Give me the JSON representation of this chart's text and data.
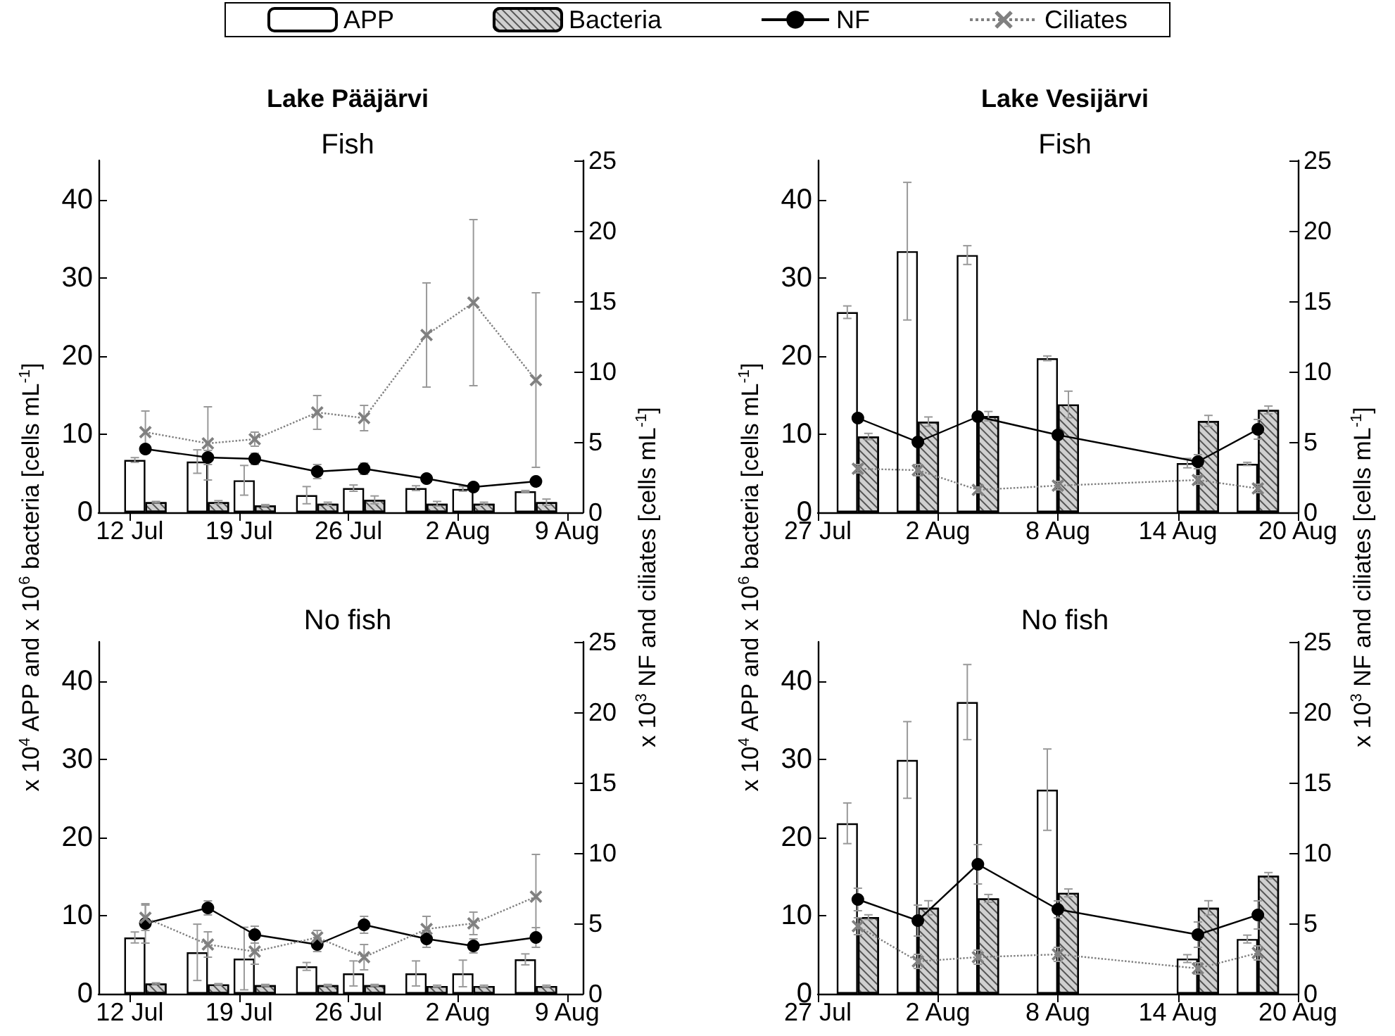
{
  "chart_data": [
    {
      "type": "bar",
      "title": "Lake Pääjärvi",
      "subtitle": "Fish",
      "ylabel": "x 10$^{4}$ APP and x 10$^{6}$ bacteria [cells mL$^{-1}$]",
      "y2label": "x 10$^{3}$ NF and ciliates [cells mL$^{-1}$]",
      "legend": "top",
      "x": [
        "--07-13",
        "--07-17",
        "--07-20",
        "--07-24",
        "--07-27",
        "--07-31",
        "--08-03",
        "--08-07"
      ],
      "xlim": [
        "--07-10",
        "--08-10"
      ],
      "xticks": [
        {
          "value": "--07-12",
          "label": "12 Jul"
        },
        {
          "value": "--07-19",
          "label": "19 Jul"
        },
        {
          "value": "--07-26",
          "label": "26 Jul"
        },
        {
          "value": "--08-02",
          "label": "2 Aug"
        },
        {
          "value": "--08-09",
          "label": "9 Aug"
        }
      ],
      "ylim": [
        0,
        45
      ],
      "yticks": [
        0,
        10,
        20,
        30,
        40
      ],
      "y2lim": [
        0,
        25
      ],
      "y2ticks": [
        0,
        5,
        10,
        15,
        20,
        25
      ],
      "series": [
        {
          "name": "APP",
          "color": "#ffffff",
          "values": [
            6.7,
            6.5,
            4.1,
            2.2,
            3.1,
            3.1,
            3.0,
            2.7
          ],
          "errors": [
            0.3,
            1.5,
            1.9,
            1.1,
            0.4,
            0.3,
            0.3,
            0.1
          ]
        },
        {
          "name": "Bacteria",
          "color": "#d0d0d0",
          "values": [
            1.3,
            1.3,
            0.9,
            1.1,
            1.6,
            1.1,
            1.1,
            1.3
          ],
          "errors": [
            0.1,
            0.2,
            0.1,
            0.2,
            0.5,
            0.3,
            0.2,
            0.4
          ]
        },
        {
          "name": "NF",
          "type": "line",
          "axis": "y2",
          "color": "#000000",
          "marker": "circle",
          "line_style": "solid",
          "values": [
            4.5,
            3.9,
            3.8,
            2.9,
            3.1,
            2.4,
            1.8,
            2.2
          ],
          "errors": [
            0.3,
            0.5,
            0.4,
            0.5,
            0.4,
            0.2,
            0.3,
            0.3
          ]
        },
        {
          "name": "Ciliates",
          "type": "line",
          "axis": "y2",
          "color": "#808080",
          "marker": "cross",
          "line_style": "dotted",
          "values": [
            5.7,
            4.9,
            5.2,
            7.1,
            6.7,
            12.6,
            14.9,
            9.4
          ],
          "errors": [
            1.5,
            2.6,
            0.5,
            1.2,
            0.9,
            3.7,
            5.9,
            6.2
          ]
        }
      ]
    },
    {
      "type": "bar",
      "title": "No fish",
      "x": [
        "--07-13",
        "--07-17",
        "--07-20",
        "--07-24",
        "--07-27",
        "--07-31",
        "--08-03",
        "--08-07"
      ],
      "xlim": [
        "--07-10",
        "--08-10"
      ],
      "xticks": [
        {
          "value": "--07-12",
          "label": "12 Jul"
        },
        {
          "value": "--07-19",
          "label": "19 Jul"
        },
        {
          "value": "--07-26",
          "label": "26 Jul"
        },
        {
          "value": "--08-02",
          "label": "2 Aug"
        },
        {
          "value": "--08-09",
          "label": "9 Aug"
        }
      ],
      "ylim": [
        0,
        45
      ],
      "yticks": [
        0,
        10,
        20,
        30,
        40
      ],
      "y2lim": [
        0,
        25
      ],
      "y2ticks": [
        0,
        5,
        10,
        15,
        20,
        25
      ],
      "series": [
        {
          "color": "#ffffff",
          "values": [
            7.2,
            5.3,
            4.5,
            3.5,
            2.6,
            2.6,
            2.6,
            4.4
          ],
          "errors": [
            0.7,
            3.6,
            4.0,
            0.5,
            1.6,
            1.6,
            1.7,
            0.7
          ]
        },
        {
          "color": "#d0d0d0",
          "values": [
            1.3,
            1.2,
            1.1,
            1.1,
            1.1,
            1.0,
            1.0,
            1.0
          ],
          "errors": [
            0.1,
            0.1,
            0.1,
            0.1,
            0.1,
            0.1,
            0.1,
            0.1
          ]
        },
        {
          "type": "line",
          "axis": "y2",
          "color": "#000000",
          "marker": "circle",
          "line_style": "solid",
          "values": [
            5.0,
            6.1,
            4.2,
            3.5,
            4.9,
            3.9,
            3.4,
            4.0
          ],
          "errors": [
            1.4,
            0.5,
            0.6,
            0.5,
            0.6,
            0.6,
            0.5,
            0.7
          ]
        },
        {
          "type": "line",
          "axis": "y2",
          "color": "#808080",
          "marker": "cross",
          "line_style": "dotted",
          "values": [
            5.4,
            3.5,
            3.0,
            4.0,
            2.6,
            4.6,
            5.0,
            6.9
          ],
          "errors": [
            0.9,
            0.9,
            0.9,
            0.5,
            0.9,
            0.9,
            0.8,
            3.0
          ]
        }
      ]
    },
    {
      "type": "bar",
      "title": "Lake Vesijärvi",
      "subtitle": "Fish",
      "ylabel": "x 10$^{4}$ APP and x 10$^{6}$ bacteria [cells mL$^{-1}$]",
      "y2label": "x 10$^{3}$ NF and ciliates [cells mL$^{-1}$]",
      "x": [
        "--07-29",
        "--08-01",
        "--08-04",
        "--08-08",
        "--08-15",
        "--08-18"
      ],
      "xlim": [
        "--07-27",
        "--08-20"
      ],
      "xticks": [
        {
          "value": "--07-27",
          "label": "27 Jul"
        },
        {
          "value": "--08-02",
          "label": "2 Aug"
        },
        {
          "value": "--08-08",
          "label": "8 Aug"
        },
        {
          "value": "--08-14",
          "label": "14 Aug"
        },
        {
          "value": "--08-20",
          "label": "20 Aug"
        }
      ],
      "ylim": [
        0,
        45
      ],
      "yticks": [
        0,
        10,
        20,
        30,
        40
      ],
      "y2lim": [
        0,
        25
      ],
      "y2ticks": [
        0,
        5,
        10,
        15,
        20,
        25
      ],
      "series": [
        {
          "color": "#ffffff",
          "values": [
            25.6,
            33.4,
            32.9,
            19.7,
            6.3,
            6.2
          ],
          "errors": [
            0.8,
            8.8,
            1.2,
            0.3,
            0.6,
            0.2
          ]
        },
        {
          "color": "#d0d0d0",
          "values": [
            9.7,
            11.6,
            12.3,
            13.8,
            11.7,
            13.1
          ],
          "errors": [
            0.4,
            0.6,
            0.6,
            1.7,
            0.7,
            0.5
          ]
        },
        {
          "type": "line",
          "axis": "y2",
          "color": "#000000",
          "marker": "circle",
          "line_style": "solid",
          "values": [
            6.7,
            5.0,
            6.8,
            5.5,
            3.6,
            5.9
          ],
          "errors": [
            0.3,
            0.3,
            0.3,
            0.3,
            0.5,
            0.7
          ]
        },
        {
          "type": "line",
          "axis": "y2",
          "color": "#808080",
          "marker": "cross",
          "line_style": "dotted",
          "values": [
            3.1,
            3.0,
            1.6,
            1.9,
            2.3,
            1.7
          ],
          "errors": [
            0.3,
            0.4,
            0.2,
            0.3,
            0.3,
            0.3
          ]
        }
      ]
    },
    {
      "type": "bar",
      "title": "No fish",
      "x": [
        "--07-29",
        "--08-01",
        "--08-04",
        "--08-08",
        "--08-15",
        "--08-18"
      ],
      "xlim": [
        "--07-27",
        "--08-20"
      ],
      "xticks": [
        {
          "value": "--07-27",
          "label": "27 Jul"
        },
        {
          "value": "--08-02",
          "label": "2 Aug"
        },
        {
          "value": "--08-08",
          "label": "8 Aug"
        },
        {
          "value": "--08-14",
          "label": "14 Aug"
        },
        {
          "value": "--08-20",
          "label": "20 Aug"
        }
      ],
      "ylim": [
        0,
        45
      ],
      "yticks": [
        0,
        10,
        20,
        30,
        40
      ],
      "y2lim": [
        0,
        25
      ],
      "y2ticks": [
        0,
        5,
        10,
        15,
        20,
        25
      ],
      "series": [
        {
          "color": "#ffffff",
          "values": [
            21.8,
            29.9,
            37.3,
            26.1,
            4.5,
            7.0
          ],
          "errors": [
            2.6,
            4.9,
            4.8,
            5.2,
            0.5,
            0.5
          ]
        },
        {
          "color": "#d0d0d0",
          "values": [
            9.8,
            11.0,
            12.2,
            12.9,
            11.0,
            15.1
          ],
          "errors": [
            0.3,
            0.9,
            0.5,
            0.5,
            0.9,
            0.4
          ]
        },
        {
          "type": "line",
          "axis": "y2",
          "color": "#000000",
          "marker": "circle",
          "line_style": "solid",
          "values": [
            6.7,
            5.2,
            9.2,
            6.0,
            4.2,
            5.6
          ],
          "errors": [
            0.8,
            1.1,
            1.4,
            0.6,
            0.9,
            1.0
          ]
        },
        {
          "type": "line",
          "axis": "y2",
          "color": "#808080",
          "marker": "cross",
          "line_style": "dotted",
          "values": [
            4.8,
            2.3,
            2.6,
            2.8,
            1.8,
            2.9
          ],
          "errors": [
            0.6,
            0.5,
            0.5,
            0.5,
            0.4,
            0.5
          ]
        }
      ]
    }
  ]
}
